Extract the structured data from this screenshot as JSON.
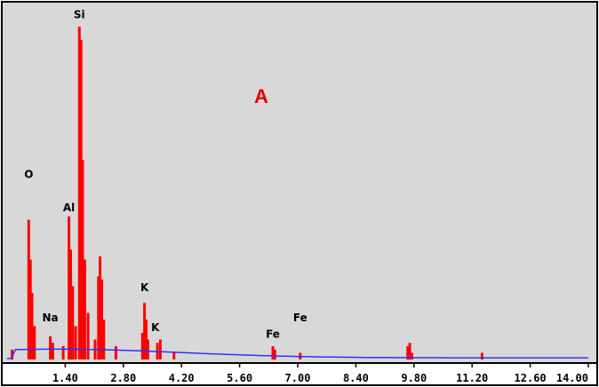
{
  "chart_data": {
    "type": "bar",
    "title": "A",
    "title_color": "#e00000",
    "spectrum_color": "#ff0000",
    "background_color": "#d8d8d8",
    "background_curve_color": "#3030ff",
    "xlabel": "",
    "ylabel": "",
    "grid": false,
    "xlim": [
      0.0,
      14.0
    ],
    "ylim": [
      0,
      100
    ],
    "x_ticks": [
      1.4,
      2.8,
      4.2,
      5.6,
      7.0,
      8.4,
      9.8,
      11.2,
      12.6,
      14.0
    ],
    "x_tick_labels": [
      "1.40",
      "2.80",
      "4.20",
      "5.60",
      "7.00",
      "8.40",
      "9.80",
      "11.20",
      "12.60",
      "14.00"
    ],
    "peaks": [
      {
        "x": 0.12,
        "y": 3
      },
      {
        "x": 0.52,
        "y": 42
      },
      {
        "x": 0.56,
        "y": 30
      },
      {
        "x": 0.6,
        "y": 20
      },
      {
        "x": 0.66,
        "y": 10
      },
      {
        "x": 1.04,
        "y": 7
      },
      {
        "x": 1.1,
        "y": 5
      },
      {
        "x": 1.35,
        "y": 4
      },
      {
        "x": 1.49,
        "y": 43
      },
      {
        "x": 1.53,
        "y": 33
      },
      {
        "x": 1.58,
        "y": 22
      },
      {
        "x": 1.65,
        "y": 10
      },
      {
        "x": 1.74,
        "y": 100
      },
      {
        "x": 1.78,
        "y": 96
      },
      {
        "x": 1.82,
        "y": 60
      },
      {
        "x": 1.87,
        "y": 30
      },
      {
        "x": 1.95,
        "y": 14
      },
      {
        "x": 2.12,
        "y": 6
      },
      {
        "x": 2.2,
        "y": 25
      },
      {
        "x": 2.24,
        "y": 31
      },
      {
        "x": 2.28,
        "y": 24
      },
      {
        "x": 2.33,
        "y": 12
      },
      {
        "x": 2.62,
        "y": 4
      },
      {
        "x": 3.26,
        "y": 8
      },
      {
        "x": 3.31,
        "y": 17
      },
      {
        "x": 3.35,
        "y": 12
      },
      {
        "x": 3.39,
        "y": 6
      },
      {
        "x": 3.62,
        "y": 5
      },
      {
        "x": 3.69,
        "y": 6
      },
      {
        "x": 4.02,
        "y": 2
      },
      {
        "x": 6.4,
        "y": 4
      },
      {
        "x": 6.45,
        "y": 3
      },
      {
        "x": 7.06,
        "y": 2
      },
      {
        "x": 9.65,
        "y": 4
      },
      {
        "x": 9.7,
        "y": 5
      },
      {
        "x": 9.75,
        "y": 2
      },
      {
        "x": 11.44,
        "y": 2
      }
    ],
    "annotations": [
      {
        "text": "O",
        "x": 0.52,
        "y": 54
      },
      {
        "text": "Na",
        "x": 1.04,
        "y": 11
      },
      {
        "text": "Al",
        "x": 1.49,
        "y": 44
      },
      {
        "text": "Si",
        "x": 1.74,
        "y": 102
      },
      {
        "text": "K",
        "x": 3.31,
        "y": 20
      },
      {
        "text": "K",
        "x": 3.57,
        "y": 8
      },
      {
        "text": "Fe",
        "x": 6.4,
        "y": 6
      },
      {
        "text": "Fe",
        "x": 7.06,
        "y": 11
      }
    ]
  }
}
